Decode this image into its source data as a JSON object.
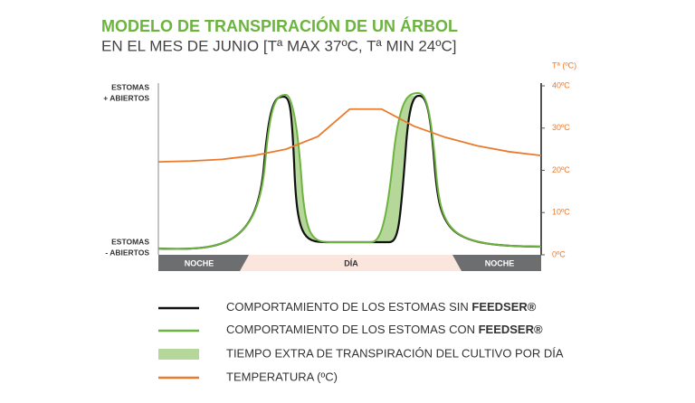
{
  "chart_data": {
    "type": "line",
    "title": "MODELO DE TRANSPIRACIÓN DE UN ÁRBOL",
    "subtitle": "EN EL MES DE JUNIO [Tª MAX 37ºC, Tª MIN 24ºC]",
    "y2_label": "Tª (ºC)",
    "y_top_label": [
      "ESTOMAS",
      "+ ABIERTOS"
    ],
    "y_bottom_label": [
      "ESTOMAS",
      "- ABIERTOS"
    ],
    "bands": [
      "NOCHE",
      "DÍA",
      "NOCHE"
    ],
    "y2lim": [
      0,
      40
    ],
    "y2ticks": [
      {
        "value": 0,
        "label": "0ºC"
      },
      {
        "value": 10,
        "label": "10ºC"
      },
      {
        "value": 20,
        "label": "20ºC"
      },
      {
        "value": 30,
        "label": "30ºC"
      },
      {
        "value": 40,
        "label": "40ºC"
      }
    ],
    "categories": [
      null,
      null,
      null,
      null,
      null,
      null,
      null,
      null,
      null,
      null,
      null,
      null,
      null
    ],
    "series": [
      {
        "name": "TEMPERATURA (ºC)",
        "color": "#ea7a2c",
        "axis": "y2",
        "values": [
          22,
          22.2,
          22.6,
          23.5,
          25,
          28,
          34.5,
          34.5,
          30.5,
          27.8,
          25.8,
          24.4,
          23.5
        ]
      }
    ],
    "legend_items": [
      {
        "text": "COMPORTAMIENTO DE LOS ESTOMAS SIN ",
        "brand": "FEEDSER®"
      },
      {
        "text": "COMPORTAMIENTO DE LOS ESTOMAS CON ",
        "brand": "FEEDSER®"
      },
      {
        "text": "TIEMPO EXTRA DE TRANSPIRACIÓN DEL CULTIVO POR DÍA"
      }
    ]
  }
}
